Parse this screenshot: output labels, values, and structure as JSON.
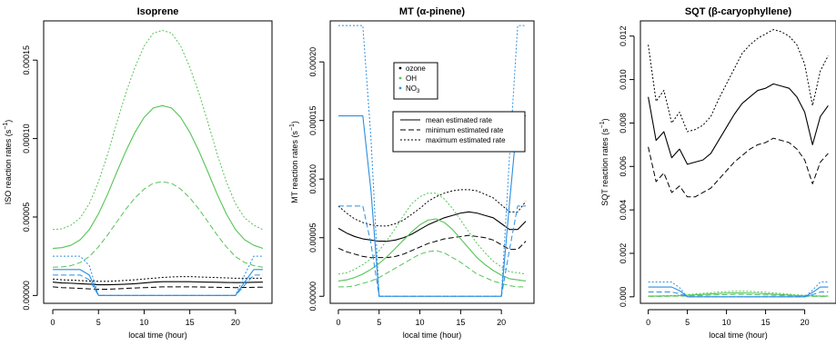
{
  "colors": {
    "ozone": "#000000",
    "OH": "#55c455",
    "NO3": "#2a8fe0",
    "axis": "#000000"
  },
  "chart_data": [
    {
      "type": "line",
      "title": "Isoprene",
      "xlabel": "local time (hour)",
      "ylabel": "ISO reaction rates (s",
      "ylabel_sup": "−1",
      "ylabel_close": ")",
      "xlim": [
        -1,
        24
      ],
      "ylim": [
        -5e-06,
        0.000175
      ],
      "xticks": [
        0,
        5,
        10,
        15,
        20
      ],
      "xtick_labels": [
        "0",
        "5",
        "10",
        "15",
        "20"
      ],
      "yticks": [
        0,
        5e-05,
        0.0001,
        0.00015
      ],
      "ytick_labels": [
        "0.00000",
        "0.00005",
        "0.00010",
        "0.00015"
      ],
      "x": [
        0,
        1,
        2,
        3,
        4,
        5,
        6,
        7,
        8,
        9,
        10,
        11,
        12,
        13,
        14,
        15,
        16,
        17,
        18,
        19,
        20,
        21,
        22,
        23
      ],
      "series": [
        {
          "name": "ozone",
          "stat": "mean",
          "values": [
            8.5e-06,
            8e-06,
            7.8e-06,
            7.5e-06,
            7.2e-06,
            6.8e-06,
            6.8e-06,
            7e-06,
            7.2e-06,
            7.5e-06,
            8e-06,
            8.5e-06,
            8.8e-06,
            8.8e-06,
            8.8e-06,
            8.8e-06,
            8.6e-06,
            8.5e-06,
            8.4e-06,
            8.3e-06,
            8.2e-06,
            8.3e-06,
            8.4e-06,
            8.5e-06
          ]
        },
        {
          "name": "ozone",
          "stat": "min",
          "values": [
            5.5e-06,
            5e-06,
            4.8e-06,
            4.5e-06,
            4.2e-06,
            4e-06,
            4e-06,
            4.2e-06,
            4.5e-06,
            4.8e-06,
            5e-06,
            5.2e-06,
            5.5e-06,
            5.5e-06,
            5.5e-06,
            5.5e-06,
            5.4e-06,
            5.3e-06,
            5.2e-06,
            5.1e-06,
            5e-06,
            5.1e-06,
            5.2e-06,
            5.3e-06
          ]
        },
        {
          "name": "ozone",
          "stat": "max",
          "values": [
            1.05e-05,
            1e-05,
            9.8e-06,
            9.5e-06,
            9.2e-06,
            9e-06,
            9e-06,
            9.3e-06,
            9.6e-06,
            1e-05,
            1.05e-05,
            1.1e-05,
            1.15e-05,
            1.18e-05,
            1.2e-05,
            1.2e-05,
            1.18e-05,
            1.16e-05,
            1.14e-05,
            1.12e-05,
            1.1e-05,
            1.1e-05,
            1.1e-05,
            1.1e-05
          ]
        },
        {
          "name": "OH",
          "stat": "mean",
          "values": [
            3e-05,
            3.05e-05,
            3.2e-05,
            3.55e-05,
            4.2e-05,
            5.2e-05,
            6.45e-05,
            7.85e-05,
            9.2e-05,
            0.000104,
            0.0001135,
            0.0001195,
            0.000121,
            0.0001195,
            0.0001135,
            0.000104,
            9.2e-05,
            7.85e-05,
            6.45e-05,
            5.2e-05,
            4.2e-05,
            3.55e-05,
            3.2e-05,
            3e-05
          ]
        },
        {
          "name": "OH",
          "stat": "min",
          "values": [
            1.8e-05,
            1.82e-05,
            1.9e-05,
            2.1e-05,
            2.48e-05,
            3.1e-05,
            3.85e-05,
            4.68e-05,
            5.5e-05,
            6.22e-05,
            6.78e-05,
            7.15e-05,
            7.25e-05,
            7.15e-05,
            6.78e-05,
            6.22e-05,
            5.5e-05,
            4.68e-05,
            3.85e-05,
            3.1e-05,
            2.48e-05,
            2.1e-05,
            1.9e-05,
            1.8e-05
          ]
        },
        {
          "name": "OH",
          "stat": "max",
          "values": [
            4.2e-05,
            4.25e-05,
            4.48e-05,
            4.95e-05,
            5.85e-05,
            7.25e-05,
            9e-05,
            0.00011,
            0.000129,
            0.0001455,
            0.000159,
            0.0001672,
            0.000169,
            0.0001672,
            0.000159,
            0.0001455,
            0.000129,
            0.00011,
            9e-05,
            7.25e-05,
            5.85e-05,
            4.95e-05,
            4.48e-05,
            4.2e-05
          ]
        },
        {
          "name": "NO3",
          "stat": "mean",
          "values": [
            1.65e-05,
            1.65e-05,
            1.65e-05,
            1.65e-05,
            1.3e-05,
            0,
            0,
            0,
            0,
            0,
            0,
            0,
            0,
            0,
            0,
            0,
            0,
            0,
            0,
            0,
            0,
            8.5e-06,
            1.65e-05,
            1.65e-05
          ]
        },
        {
          "name": "NO3",
          "stat": "min",
          "values": [
            1.3e-05,
            1.3e-05,
            1.3e-05,
            1.3e-05,
            1e-05,
            0,
            0,
            0,
            0,
            0,
            0,
            0,
            0,
            0,
            0,
            0,
            0,
            0,
            0,
            0,
            0,
            6.5e-06,
            1.3e-05,
            1.3e-05
          ]
        },
        {
          "name": "NO3",
          "stat": "max",
          "values": [
            2.5e-05,
            2.5e-05,
            2.5e-05,
            2.5e-05,
            1.9e-05,
            0,
            0,
            0,
            0,
            0,
            0,
            0,
            0,
            0,
            0,
            0,
            0,
            0,
            0,
            0,
            0,
            1.3e-05,
            2.5e-05,
            2.5e-05
          ]
        }
      ]
    },
    {
      "type": "line",
      "title": "MT (α-pinene)",
      "xlabel": "local time (hour)",
      "ylabel": "MT reaction rates (s",
      "ylabel_sup": "−1",
      "ylabel_close": ")",
      "xlim": [
        -1,
        24
      ],
      "ylim": [
        -6e-06,
        0.000235
      ],
      "xticks": [
        0,
        5,
        10,
        15,
        20
      ],
      "xtick_labels": [
        "0",
        "5",
        "10",
        "15",
        "20"
      ],
      "yticks": [
        0,
        5e-05,
        0.0001,
        0.00015,
        0.0002
      ],
      "ytick_labels": [
        "0.00000",
        "0.00005",
        "0.00010",
        "0.00015",
        "0.00020"
      ],
      "x": [
        0,
        1,
        2,
        3,
        4,
        5,
        6,
        7,
        8,
        9,
        10,
        11,
        12,
        13,
        14,
        15,
        16,
        17,
        18,
        19,
        20,
        21,
        22,
        23
      ],
      "legend_species": {
        "placement": "top-center",
        "entries": [
          {
            "label": "ozone",
            "series": "ozone"
          },
          {
            "label": "OH",
            "series": "OH"
          },
          {
            "label": "NO",
            "sub": "3",
            "series": "NO3"
          }
        ]
      },
      "legend_stats": {
        "placement": "center",
        "entries": [
          {
            "label": "mean estimated rate",
            "dash": "solid"
          },
          {
            "label": "minimum estimated rate",
            "dash": "dashed"
          },
          {
            "label": "maximum estimated rate",
            "dash": "dotted"
          }
        ]
      },
      "series": [
        {
          "name": "ozone",
          "stat": "mean",
          "values": [
            5.8e-05,
            5.4e-05,
            5.1e-05,
            4.9e-05,
            4.8e-05,
            4.7e-05,
            4.7e-05,
            4.8e-05,
            5e-05,
            5.3e-05,
            5.7e-05,
            6.1e-05,
            6.4e-05,
            6.7e-05,
            6.9e-05,
            7.1e-05,
            7.2e-05,
            7.1e-05,
            6.9e-05,
            6.7e-05,
            6.2e-05,
            5.7e-05,
            5.7e-05,
            6.4e-05
          ]
        },
        {
          "name": "ozone",
          "stat": "min",
          "values": [
            4.1e-05,
            3.8e-05,
            3.6e-05,
            3.4e-05,
            3.3e-05,
            3.3e-05,
            3.3e-05,
            3.4e-05,
            3.6e-05,
            3.9e-05,
            4.2e-05,
            4.5e-05,
            4.7e-05,
            4.9e-05,
            5e-05,
            5.1e-05,
            5.2e-05,
            5.1e-05,
            5e-05,
            4.8e-05,
            4.4e-05,
            4e-05,
            4e-05,
            4.7e-05
          ]
        },
        {
          "name": "ozone",
          "stat": "max",
          "values": [
            7.7e-05,
            7.1e-05,
            6.6e-05,
            6.3e-05,
            6.1e-05,
            6e-05,
            6e-05,
            6.2e-05,
            6.5e-05,
            7e-05,
            7.5e-05,
            8.1e-05,
            8.5e-05,
            8.8e-05,
            9e-05,
            9.1e-05,
            9.1e-05,
            9e-05,
            8.7e-05,
            8.4e-05,
            7.8e-05,
            7.2e-05,
            7.2e-05,
            8.1e-05
          ]
        },
        {
          "name": "OH",
          "stat": "mean",
          "values": [
            1.3e-05,
            1.4e-05,
            1.6e-05,
            1.9e-05,
            2.3e-05,
            2.8e-05,
            3.4e-05,
            4.1e-05,
            4.8e-05,
            5.5e-05,
            6.1e-05,
            6.5e-05,
            6.6e-05,
            6.3e-05,
            5.7e-05,
            4.9e-05,
            4.1e-05,
            3.3e-05,
            2.7e-05,
            2.2e-05,
            1.8e-05,
            1.5e-05,
            1.4e-05,
            1.3e-05
          ]
        },
        {
          "name": "OH",
          "stat": "min",
          "values": [
            8e-06,
            8e-06,
            9e-06,
            1.1e-05,
            1.3e-05,
            1.6e-05,
            2e-05,
            2.4e-05,
            2.8e-05,
            3.2e-05,
            3.6e-05,
            3.8e-05,
            3.9e-05,
            3.7e-05,
            3.3e-05,
            2.9e-05,
            2.4e-05,
            1.9e-05,
            1.6e-05,
            1.3e-05,
            1.1e-05,
            9e-06,
            8e-06,
            8e-06
          ]
        },
        {
          "name": "OH",
          "stat": "max",
          "values": [
            1.9e-05,
            2e-05,
            2.3e-05,
            2.7e-05,
            3.2e-05,
            3.9e-05,
            4.8e-05,
            5.8e-05,
            6.9e-05,
            7.9e-05,
            8.5e-05,
            8.8e-05,
            8.8e-05,
            8.3e-05,
            7.5e-05,
            6.5e-05,
            5.5e-05,
            4.5e-05,
            3.7e-05,
            3e-05,
            2.5e-05,
            2.1e-05,
            2e-05,
            1.9e-05
          ]
        },
        {
          "name": "NO3",
          "stat": "mean",
          "values": [
            0.000154,
            0.000154,
            0.000154,
            0.000154,
            9e-05,
            0,
            0,
            0,
            0,
            0,
            0,
            0,
            0,
            0,
            0,
            0,
            0,
            0,
            0,
            0,
            0,
            8e-05,
            0.000154,
            0.000154
          ]
        },
        {
          "name": "NO3",
          "stat": "min",
          "values": [
            7.7e-05,
            7.7e-05,
            7.7e-05,
            7.7e-05,
            4.5e-05,
            0,
            0,
            0,
            0,
            0,
            0,
            0,
            0,
            0,
            0,
            0,
            0,
            0,
            0,
            0,
            0,
            4e-05,
            7.7e-05,
            7.7e-05
          ]
        },
        {
          "name": "NO3",
          "stat": "max",
          "values": [
            0.000231,
            0.000231,
            0.000231,
            0.000231,
            0.000135,
            0,
            0,
            0,
            0,
            0,
            0,
            0,
            0,
            0,
            0,
            0,
            0,
            0,
            0,
            0,
            0,
            0.00012,
            0.000231,
            0.000231
          ]
        }
      ]
    },
    {
      "type": "line",
      "title": "SQT (β-caryophyllene)",
      "xlabel": "local time (hour)",
      "ylabel": "SQT reaction rates (s",
      "ylabel_sup": "−1",
      "ylabel_close": ")",
      "xlim": [
        -1,
        24
      ],
      "ylim": [
        -0.0003,
        0.0127
      ],
      "xticks": [
        0,
        5,
        10,
        15,
        20
      ],
      "xtick_labels": [
        "0",
        "5",
        "10",
        "15",
        "20"
      ],
      "yticks": [
        0,
        0.002,
        0.004,
        0.006,
        0.008,
        0.01,
        0.012
      ],
      "ytick_labels": [
        "0.000",
        "0.002",
        "0.004",
        "0.006",
        "0.008",
        "0.010",
        "0.012"
      ],
      "x": [
        0,
        1,
        2,
        3,
        4,
        5,
        6,
        7,
        8,
        9,
        10,
        11,
        12,
        13,
        14,
        15,
        16,
        17,
        18,
        19,
        20,
        21,
        22,
        23
      ],
      "series": [
        {
          "name": "ozone",
          "stat": "mean",
          "values": [
            0.0092,
            0.0072,
            0.0076,
            0.0064,
            0.0068,
            0.0061,
            0.0062,
            0.0063,
            0.0066,
            0.0072,
            0.0078,
            0.0084,
            0.0089,
            0.0092,
            0.0095,
            0.0096,
            0.0098,
            0.0097,
            0.0096,
            0.0092,
            0.0085,
            0.007,
            0.0083,
            0.0088
          ]
        },
        {
          "name": "ozone",
          "stat": "min",
          "values": [
            0.0069,
            0.0053,
            0.0057,
            0.0048,
            0.0051,
            0.0046,
            0.0046,
            0.0048,
            0.005,
            0.0054,
            0.0058,
            0.0062,
            0.0065,
            0.0068,
            0.007,
            0.0071,
            0.0073,
            0.0072,
            0.0071,
            0.0068,
            0.0063,
            0.0052,
            0.0062,
            0.0066
          ]
        },
        {
          "name": "ozone",
          "stat": "max",
          "values": [
            0.0116,
            0.009,
            0.0095,
            0.008,
            0.0085,
            0.0076,
            0.0077,
            0.0079,
            0.0083,
            0.0091,
            0.0098,
            0.0105,
            0.0112,
            0.0116,
            0.0119,
            0.0121,
            0.0123,
            0.0122,
            0.012,
            0.0116,
            0.0107,
            0.0088,
            0.0104,
            0.0111
          ]
        },
        {
          "name": "OH",
          "stat": "mean",
          "values": [
            3e-05,
            3e-05,
            4e-05,
            4e-05,
            5e-05,
            7e-05,
            9e-05,
            0.00011,
            0.00013,
            0.00015,
            0.00017,
            0.00018,
            0.00018,
            0.00017,
            0.00016,
            0.00014,
            0.00012,
            0.0001,
            8e-05,
            6e-05,
            5e-05,
            4e-05,
            3e-05,
            3e-05
          ]
        },
        {
          "name": "OH",
          "stat": "min",
          "values": [
            2e-05,
            2e-05,
            2e-05,
            3e-05,
            3e-05,
            4e-05,
            5e-05,
            6e-05,
            8e-05,
            9e-05,
            0.0001,
            0.00011,
            0.00011,
            0.0001,
            9e-05,
            8e-05,
            7e-05,
            6e-05,
            5e-05,
            4e-05,
            3e-05,
            2e-05,
            2e-05,
            2e-05
          ]
        },
        {
          "name": "OH",
          "stat": "max",
          "values": [
            4e-05,
            4e-05,
            5e-05,
            6e-05,
            7e-05,
            0.0001,
            0.00013,
            0.00016,
            0.00019,
            0.00022,
            0.00024,
            0.00026,
            0.00026,
            0.00025,
            0.00023,
            0.00021,
            0.00018,
            0.00015,
            0.00012,
            9e-05,
            7e-05,
            5e-05,
            4e-05,
            4e-05
          ]
        },
        {
          "name": "NO3",
          "stat": "mean",
          "values": [
            0.00045,
            0.00045,
            0.00045,
            0.00045,
            0.00028,
            0,
            0,
            0,
            0,
            0,
            0,
            0,
            0,
            0,
            0,
            0,
            0,
            0,
            0,
            0,
            0,
            0.0002,
            0.00045,
            0.00045
          ]
        },
        {
          "name": "NO3",
          "stat": "min",
          "values": [
            0.00022,
            0.00022,
            0.00022,
            0.00022,
            0.00014,
            0,
            0,
            0,
            0,
            0,
            0,
            0,
            0,
            0,
            0,
            0,
            0,
            0,
            0,
            0,
            0,
            0.0001,
            0.00022,
            0.00022
          ]
        },
        {
          "name": "NO3",
          "stat": "max",
          "values": [
            0.00068,
            0.00068,
            0.00068,
            0.00068,
            0.00042,
            0,
            0,
            0,
            0,
            0,
            0,
            0,
            0,
            0,
            0,
            0,
            0,
            0,
            0,
            0,
            0,
            0.0003,
            0.00068,
            0.00068
          ]
        }
      ]
    }
  ]
}
